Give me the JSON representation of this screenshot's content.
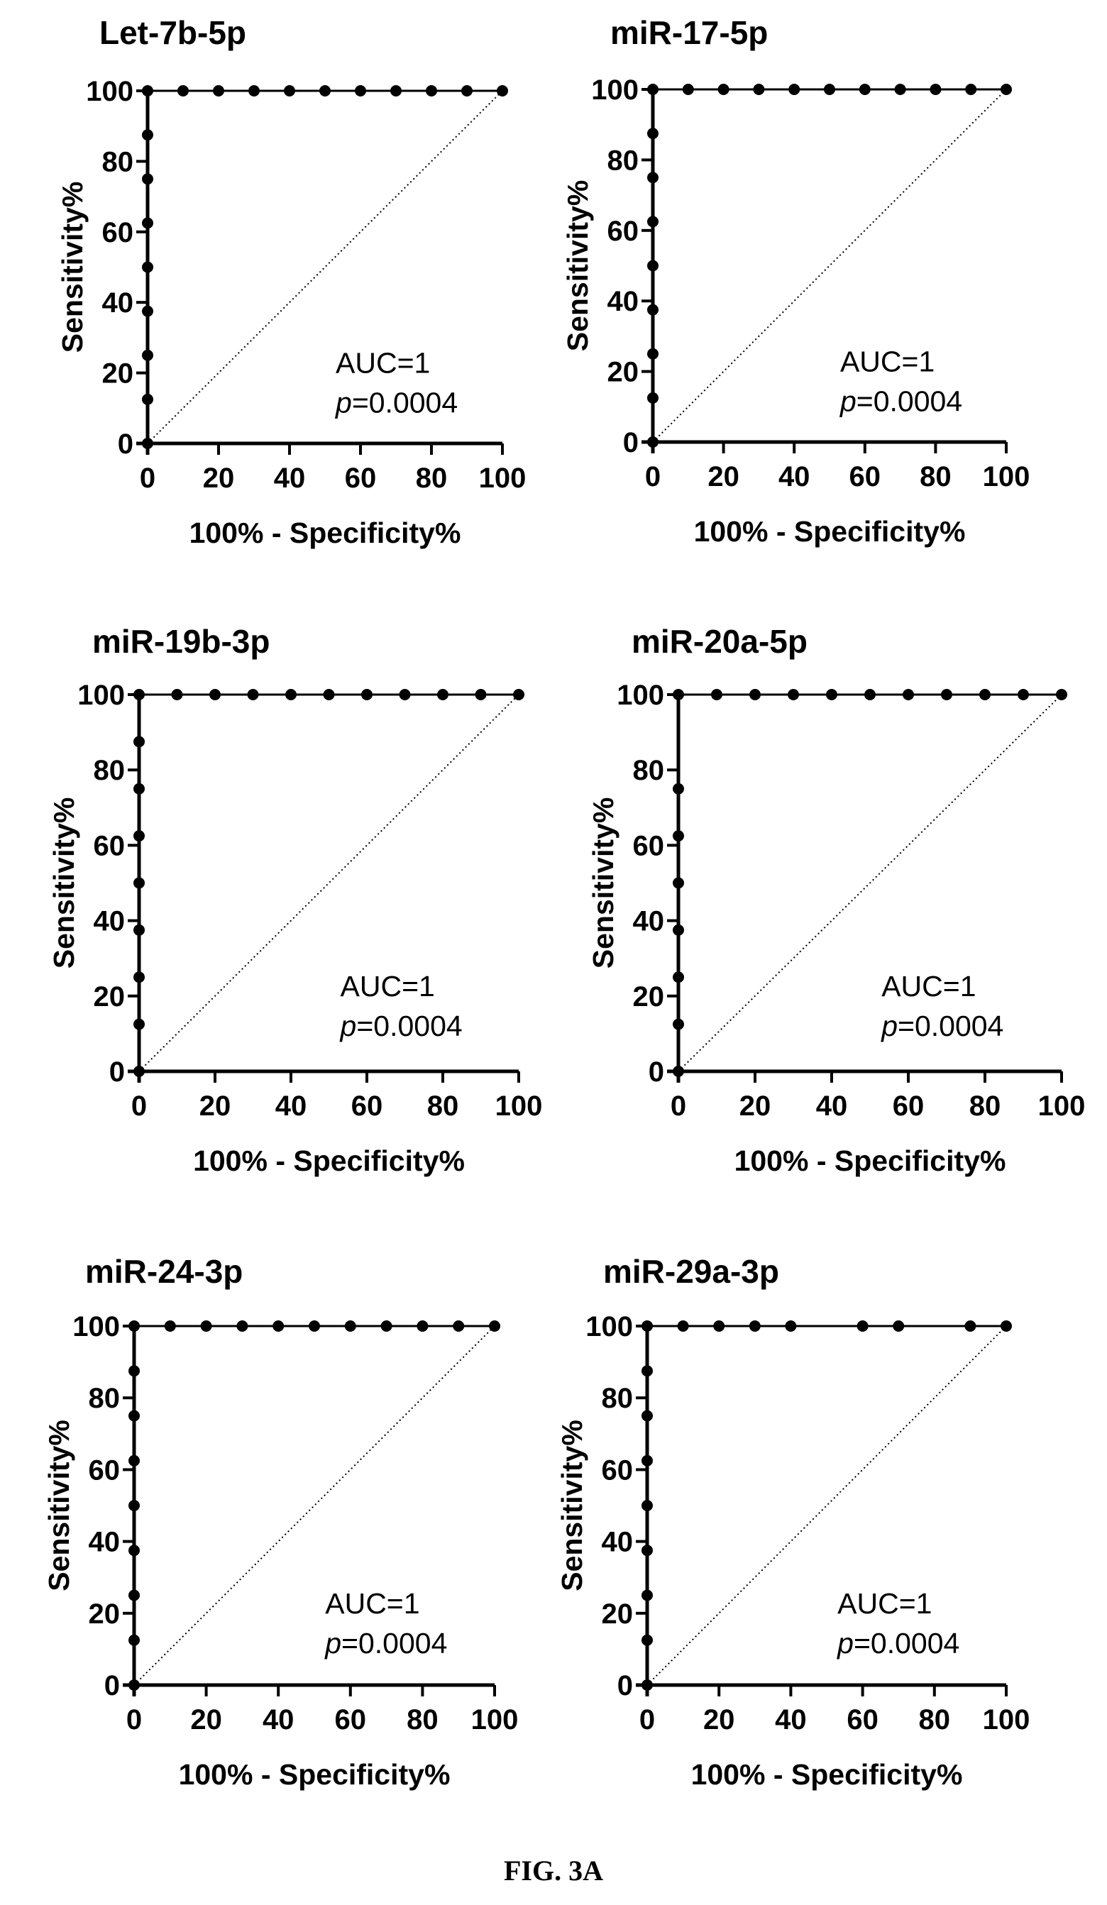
{
  "figure_label": "FIG. 3A",
  "chart_data": [
    {
      "type": "line",
      "title": "Let-7b-5p",
      "xlabel": "100% - Specificity%",
      "ylabel": "Sensitivity%",
      "xlim": [
        0,
        100
      ],
      "ylim": [
        0,
        100
      ],
      "x_ticks": [
        0,
        20,
        40,
        60,
        80,
        100
      ],
      "y_ticks": [
        0,
        20,
        40,
        60,
        80,
        100
      ],
      "annotation": {
        "auc": "AUC=1",
        "p_symbol": "p",
        "p_value": "=0.0004"
      },
      "series": [
        {
          "x": [
            0,
            0,
            0,
            0,
            0,
            0,
            0,
            0,
            0,
            10,
            20,
            30,
            40,
            50,
            60,
            70,
            80,
            90,
            100
          ],
          "y": [
            0,
            12.5,
            25,
            37.5,
            50,
            62.5,
            75,
            87.5,
            100,
            100,
            100,
            100,
            100,
            100,
            100,
            100,
            100,
            100,
            100
          ]
        }
      ],
      "reference_line": {
        "x": [
          0,
          100
        ],
        "y": [
          0,
          100
        ]
      }
    },
    {
      "type": "line",
      "title": "miR-17-5p",
      "xlabel": "100% - Specificity%",
      "ylabel": "Sensitivity%",
      "xlim": [
        0,
        100
      ],
      "ylim": [
        0,
        100
      ],
      "x_ticks": [
        0,
        20,
        40,
        60,
        80,
        100
      ],
      "y_ticks": [
        0,
        20,
        40,
        60,
        80,
        100
      ],
      "annotation": {
        "auc": "AUC=1",
        "p_symbol": "p",
        "p_value": "=0.0004"
      },
      "series": [
        {
          "x": [
            0,
            0,
            0,
            0,
            0,
            0,
            0,
            0,
            0,
            10,
            20,
            30,
            40,
            50,
            60,
            70,
            80,
            90,
            100
          ],
          "y": [
            0,
            12.5,
            25,
            37.5,
            50,
            62.5,
            75,
            87.5,
            100,
            100,
            100,
            100,
            100,
            100,
            100,
            100,
            100,
            100,
            100
          ]
        }
      ],
      "reference_line": {
        "x": [
          0,
          100
        ],
        "y": [
          0,
          100
        ]
      }
    },
    {
      "type": "line",
      "title": "miR-19b-3p",
      "xlabel": "100% - Specificity%",
      "ylabel": "Sensitivity%",
      "xlim": [
        0,
        100
      ],
      "ylim": [
        0,
        100
      ],
      "x_ticks": [
        0,
        20,
        40,
        60,
        80,
        100
      ],
      "y_ticks": [
        0,
        20,
        40,
        60,
        80,
        100
      ],
      "annotation": {
        "auc": "AUC=1",
        "p_symbol": "p",
        "p_value": "=0.0004"
      },
      "series": [
        {
          "x": [
            0,
            0,
            0,
            0,
            0,
            0,
            0,
            0,
            0,
            10,
            20,
            30,
            40,
            50,
            60,
            70,
            80,
            90,
            100
          ],
          "y": [
            0,
            12.5,
            25,
            37.5,
            50,
            62.5,
            75,
            87.5,
            100,
            100,
            100,
            100,
            100,
            100,
            100,
            100,
            100,
            100,
            100
          ]
        }
      ],
      "reference_line": {
        "x": [
          0,
          100
        ],
        "y": [
          0,
          100
        ]
      }
    },
    {
      "type": "line",
      "title": "miR-20a-5p",
      "xlabel": "100% - Specificity%",
      "ylabel": "Sensitivity%",
      "xlim": [
        0,
        100
      ],
      "ylim": [
        0,
        100
      ],
      "x_ticks": [
        0,
        20,
        40,
        60,
        80,
        100
      ],
      "y_ticks": [
        0,
        20,
        40,
        60,
        80,
        100
      ],
      "annotation": {
        "auc": "AUC=1",
        "p_symbol": "p",
        "p_value": "=0.0004"
      },
      "series": [
        {
          "x": [
            0,
            0,
            0,
            0,
            0,
            0,
            0,
            0,
            10,
            20,
            30,
            40,
            50,
            60,
            70,
            80,
            90,
            100
          ],
          "y": [
            0,
            12.5,
            25,
            37.5,
            50,
            62.5,
            75,
            100,
            100,
            100,
            100,
            100,
            100,
            100,
            100,
            100,
            100,
            100
          ]
        }
      ],
      "reference_line": {
        "x": [
          0,
          100
        ],
        "y": [
          0,
          100
        ]
      }
    },
    {
      "type": "line",
      "title": "miR-24-3p",
      "xlabel": "100% - Specificity%",
      "ylabel": "Sensitivity%",
      "xlim": [
        0,
        100
      ],
      "ylim": [
        0,
        100
      ],
      "x_ticks": [
        0,
        20,
        40,
        60,
        80,
        100
      ],
      "y_ticks": [
        0,
        20,
        40,
        60,
        80,
        100
      ],
      "annotation": {
        "auc": "AUC=1",
        "p_symbol": "p",
        "p_value": "=0.0004"
      },
      "series": [
        {
          "x": [
            0,
            0,
            0,
            0,
            0,
            0,
            0,
            0,
            0,
            10,
            20,
            30,
            40,
            50,
            60,
            70,
            80,
            90,
            100
          ],
          "y": [
            0,
            12.5,
            25,
            37.5,
            50,
            62.5,
            75,
            87.5,
            100,
            100,
            100,
            100,
            100,
            100,
            100,
            100,
            100,
            100,
            100
          ]
        }
      ],
      "reference_line": {
        "x": [
          0,
          100
        ],
        "y": [
          0,
          100
        ]
      }
    },
    {
      "type": "line",
      "title": "miR-29a-3p",
      "xlabel": "100% - Specificity%",
      "ylabel": "Sensitivity%",
      "xlim": [
        0,
        100
      ],
      "ylim": [
        0,
        100
      ],
      "x_ticks": [
        0,
        20,
        40,
        60,
        80,
        100
      ],
      "y_ticks": [
        0,
        20,
        40,
        60,
        80,
        100
      ],
      "annotation": {
        "auc": "AUC=1",
        "p_symbol": "p",
        "p_value": "=0.0004"
      },
      "series": [
        {
          "x": [
            0,
            0,
            0,
            0,
            0,
            0,
            0,
            0,
            0,
            10,
            20,
            30,
            40,
            60,
            70,
            90,
            100
          ],
          "y": [
            0,
            12.5,
            25,
            37.5,
            50,
            62.5,
            75,
            87.5,
            100,
            100,
            100,
            100,
            100,
            100,
            100,
            100,
            100
          ]
        }
      ],
      "reference_line": {
        "x": [
          0,
          100
        ],
        "y": [
          0,
          100
        ]
      }
    }
  ]
}
